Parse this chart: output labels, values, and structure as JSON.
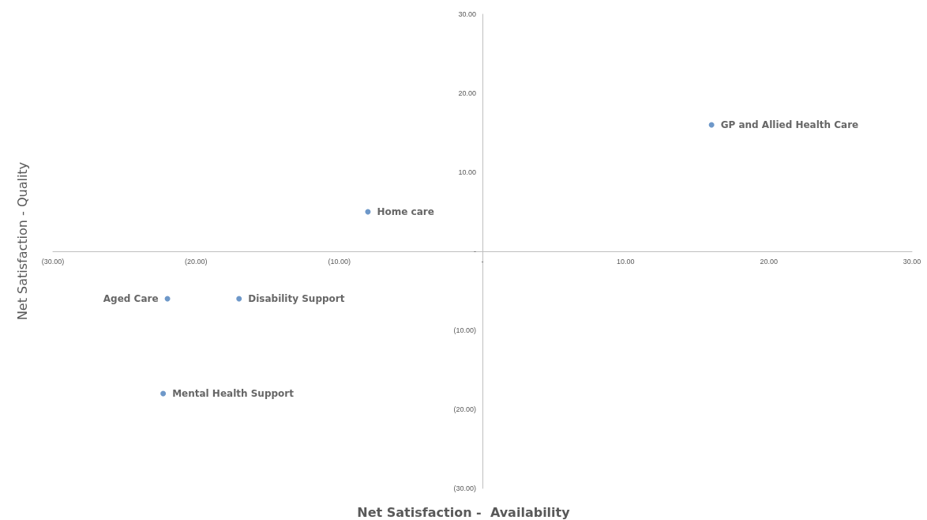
{
  "chart_data": {
    "type": "scatter",
    "xlabel": "Net Satisfaction -  Availability",
    "ylabel": "Net Satisfaction - Quality",
    "series": [
      {
        "name": "GP and Allied Health Care",
        "color": "#4a7ebb",
        "x": [
          16
        ],
        "values": [
          16
        ]
      },
      {
        "name": "Home care",
        "color": "#4a7ebb",
        "x": [
          -8
        ],
        "values": [
          5
        ]
      },
      {
        "name": "Aged Care",
        "color": "#4a7ebb",
        "x": [
          -22
        ],
        "values": [
          -6
        ]
      },
      {
        "name": "Disability Support",
        "color": "#4a7ebb",
        "x": [
          -17
        ],
        "values": [
          -6
        ]
      },
      {
        "name": "Mental Health Support",
        "color": "#4a7ebb",
        "x": [
          -22.3
        ],
        "values": [
          -18
        ]
      }
    ],
    "xlim": [
      -30,
      30
    ],
    "ylim": [
      -30,
      30
    ],
    "xticks": [
      {
        "value": -30,
        "label": "(30.00)"
      },
      {
        "value": -20,
        "label": "(20.00)"
      },
      {
        "value": -10,
        "label": "(10.00)"
      },
      {
        "value": 0,
        "label": "-"
      },
      {
        "value": 10,
        "label": "10.00"
      },
      {
        "value": 20,
        "label": "20.00"
      },
      {
        "value": 30,
        "label": "30.00"
      }
    ],
    "yticks": [
      {
        "value": -30,
        "label": "(30.00)"
      },
      {
        "value": -20,
        "label": "(20.00)"
      },
      {
        "value": -10,
        "label": "(10.00)"
      },
      {
        "value": 0,
        "label": "-"
      },
      {
        "value": 10,
        "label": "10.00"
      },
      {
        "value": 20,
        "label": "20.00"
      },
      {
        "value": 30,
        "label": "30.00"
      }
    ],
    "grid": false,
    "legend": false,
    "marker": "circle"
  }
}
